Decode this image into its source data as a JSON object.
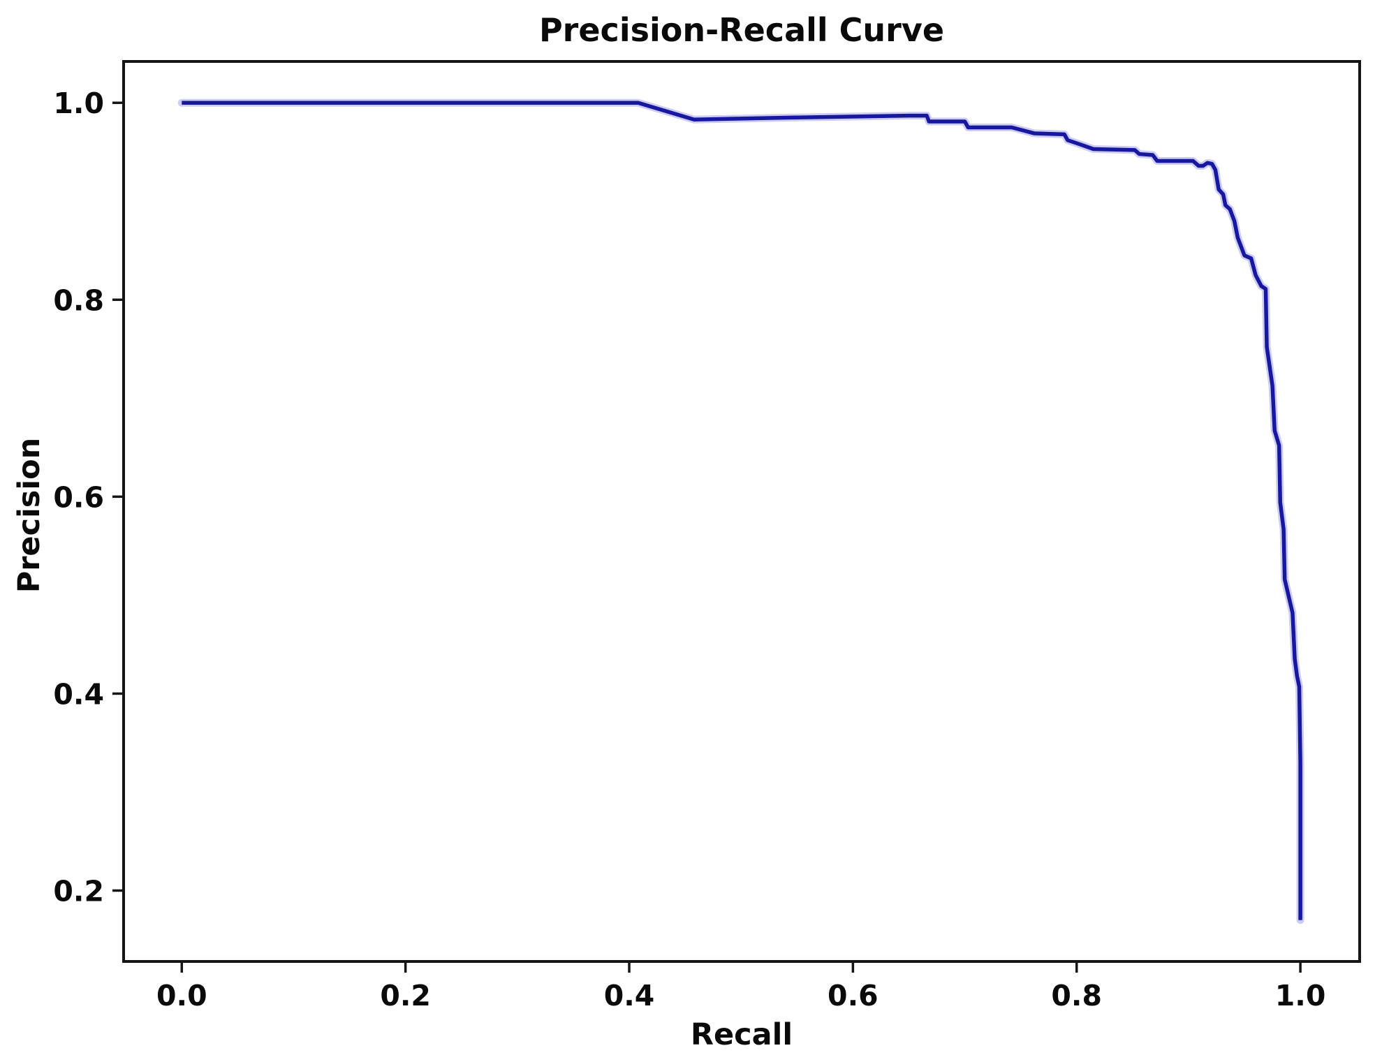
{
  "chart_data": {
    "type": "line",
    "title": "Precision-Recall Curve",
    "xlabel": "Recall",
    "ylabel": "Precision",
    "grid": false,
    "legend": "none",
    "xlim": [
      -0.052,
      1.053
    ],
    "ylim": [
      0.128,
      1.042
    ],
    "x_ticks": [
      {
        "value": 0.0,
        "label": "0.0"
      },
      {
        "value": 0.2,
        "label": "0.2"
      },
      {
        "value": 0.4,
        "label": "0.4"
      },
      {
        "value": 0.6,
        "label": "0.6"
      },
      {
        "value": 0.8,
        "label": "0.8"
      },
      {
        "value": 1.0,
        "label": "1.0"
      }
    ],
    "y_ticks": [
      {
        "value": 0.2,
        "label": "0.2"
      },
      {
        "value": 0.4,
        "label": "0.4"
      },
      {
        "value": 0.6,
        "label": "0.6"
      },
      {
        "value": 0.8,
        "label": "0.8"
      },
      {
        "value": 1.0,
        "label": "1.0"
      }
    ],
    "line_color": "#1717a0",
    "line_halo_color": "#8f8fe6",
    "axis_color": "#151515",
    "background_color": "#ffffff",
    "series": [
      {
        "name": "precision-recall",
        "points": [
          [
            0.0,
            1.0
          ],
          [
            0.408,
            1.0
          ],
          [
            0.458,
            0.983
          ],
          [
            0.545,
            0.985
          ],
          [
            0.65,
            0.987
          ],
          [
            0.666,
            0.987
          ],
          [
            0.668,
            0.981
          ],
          [
            0.7,
            0.981
          ],
          [
            0.703,
            0.975
          ],
          [
            0.742,
            0.975
          ],
          [
            0.762,
            0.969
          ],
          [
            0.789,
            0.968
          ],
          [
            0.792,
            0.962
          ],
          [
            0.8,
            0.959
          ],
          [
            0.815,
            0.953
          ],
          [
            0.852,
            0.952
          ],
          [
            0.856,
            0.948
          ],
          [
            0.868,
            0.947
          ],
          [
            0.872,
            0.941
          ],
          [
            0.904,
            0.941
          ],
          [
            0.909,
            0.936
          ],
          [
            0.913,
            0.936
          ],
          [
            0.917,
            0.939
          ],
          [
            0.921,
            0.938
          ],
          [
            0.924,
            0.932
          ],
          [
            0.927,
            0.912
          ],
          [
            0.931,
            0.907
          ],
          [
            0.933,
            0.896
          ],
          [
            0.937,
            0.892
          ],
          [
            0.941,
            0.88
          ],
          [
            0.944,
            0.863
          ],
          [
            0.95,
            0.845
          ],
          [
            0.956,
            0.842
          ],
          [
            0.96,
            0.825
          ],
          [
            0.965,
            0.814
          ],
          [
            0.969,
            0.811
          ],
          [
            0.97,
            0.752
          ],
          [
            0.975,
            0.713
          ],
          [
            0.977,
            0.667
          ],
          [
            0.981,
            0.652
          ],
          [
            0.982,
            0.594
          ],
          [
            0.985,
            0.567
          ],
          [
            0.986,
            0.516
          ],
          [
            0.993,
            0.482
          ],
          [
            0.995,
            0.435
          ],
          [
            0.997,
            0.418
          ],
          [
            0.999,
            0.407
          ],
          [
            1.0,
            0.33
          ],
          [
            1.0,
            0.17
          ]
        ]
      }
    ]
  }
}
